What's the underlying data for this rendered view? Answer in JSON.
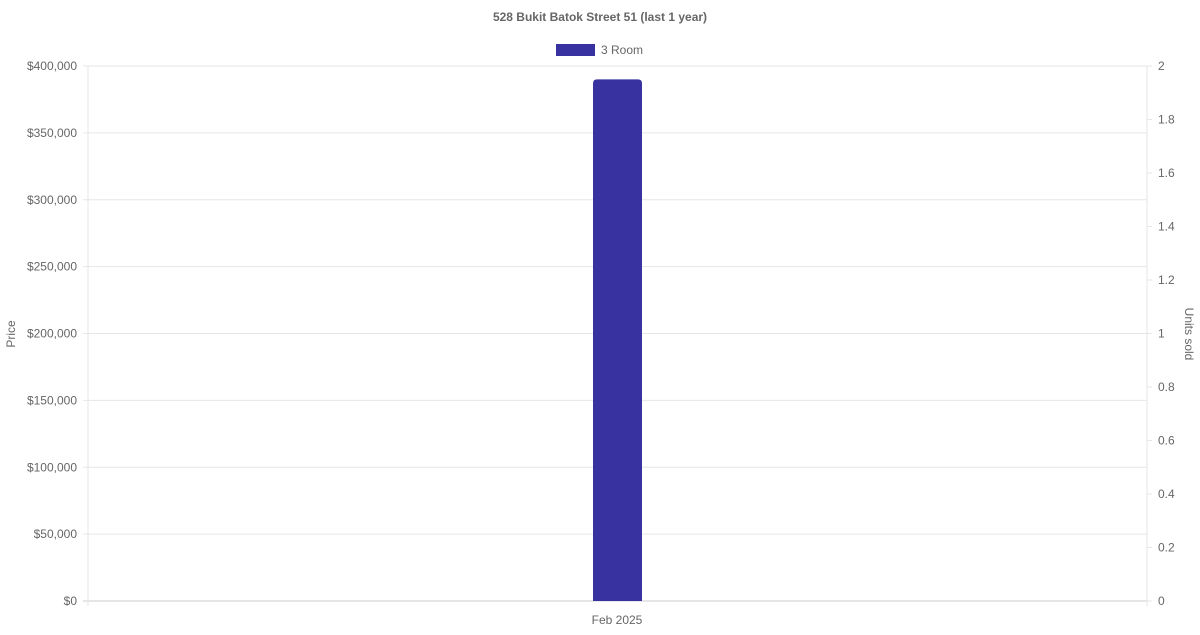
{
  "chart_data": {
    "type": "bar",
    "title": "528 Bukit Batok Street 51 (last 1 year)",
    "categories": [
      "Feb 2025"
    ],
    "series": [
      {
        "name": "3 Room",
        "values": [
          390000
        ],
        "color": "#3832a0"
      }
    ],
    "ylabel": "Price",
    "y2label": "Units sold",
    "ylim": [
      0,
      400000
    ],
    "y2lim": [
      0,
      2
    ],
    "yticks": [
      "$0",
      "$50,000",
      "$100,000",
      "$150,000",
      "$200,000",
      "$250,000",
      "$300,000",
      "$350,000",
      "$400,000"
    ],
    "y2ticks": [
      "0",
      "0.2",
      "0.4",
      "0.6",
      "0.8",
      "1",
      "1.2",
      "1.4",
      "1.6",
      "1.8",
      "2"
    ],
    "grid": true,
    "legend": "top"
  }
}
